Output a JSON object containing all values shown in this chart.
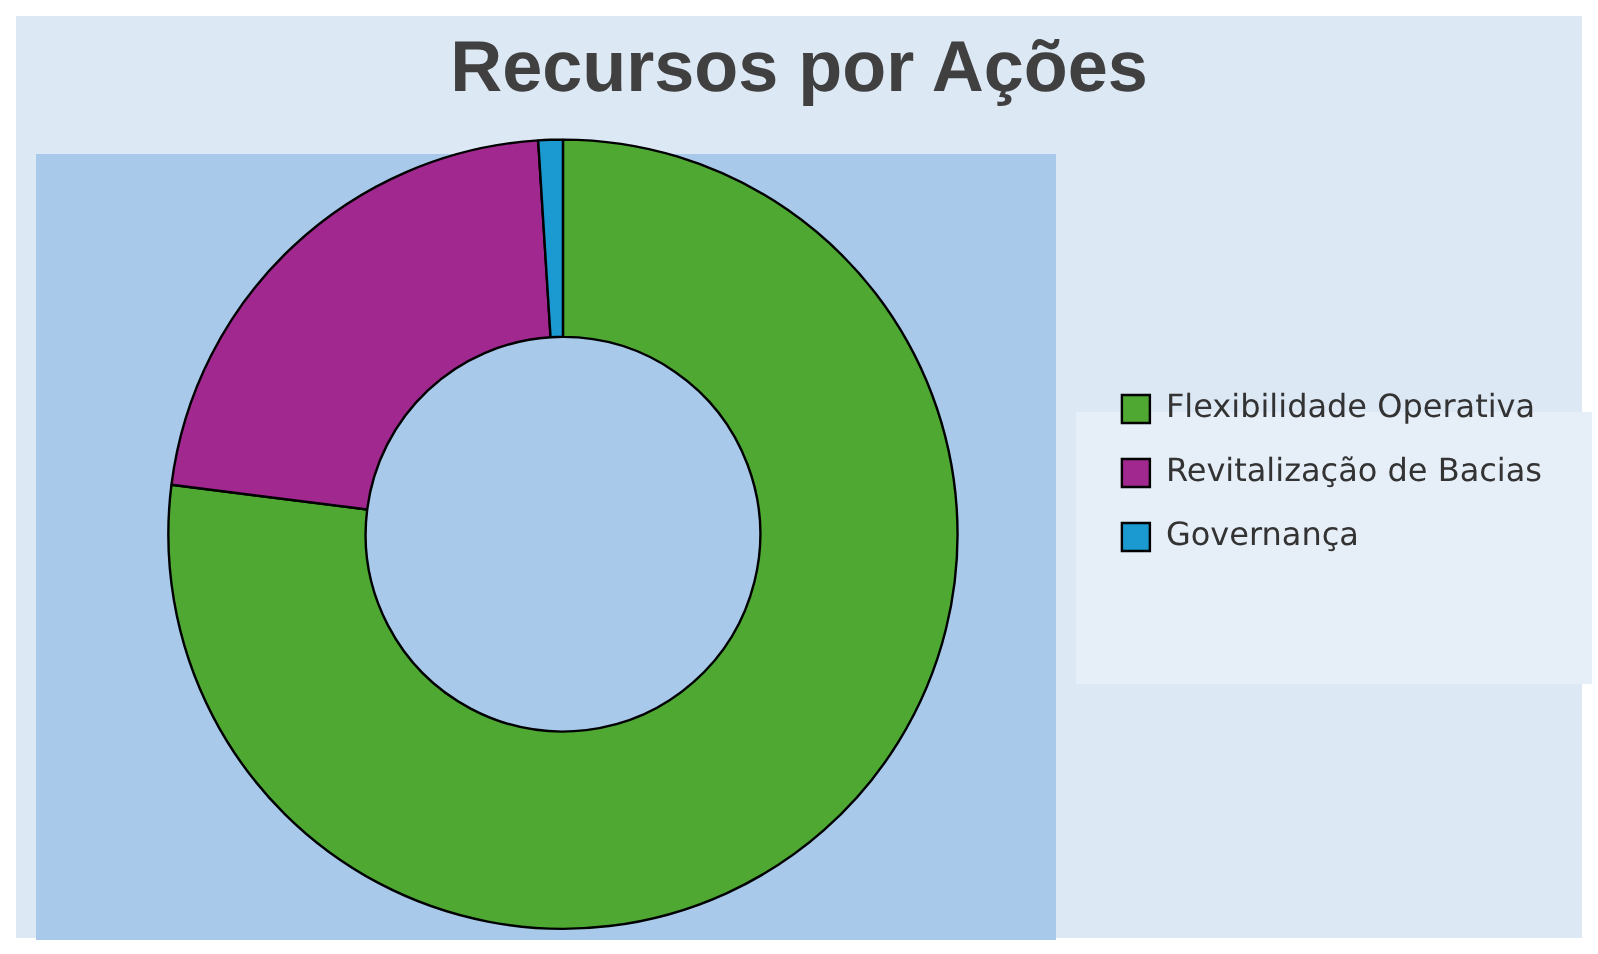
{
  "chart_data": {
    "type": "donut",
    "title": "Recursos por Ações",
    "categories": [
      "Flexibilidade Operativa",
      "Revitalização de Bacias",
      "Governança"
    ],
    "values": [
      77,
      22,
      1
    ],
    "colors": [
      "#4ea832",
      "#a0288f",
      "#1a9ad0"
    ],
    "legend": "right"
  }
}
